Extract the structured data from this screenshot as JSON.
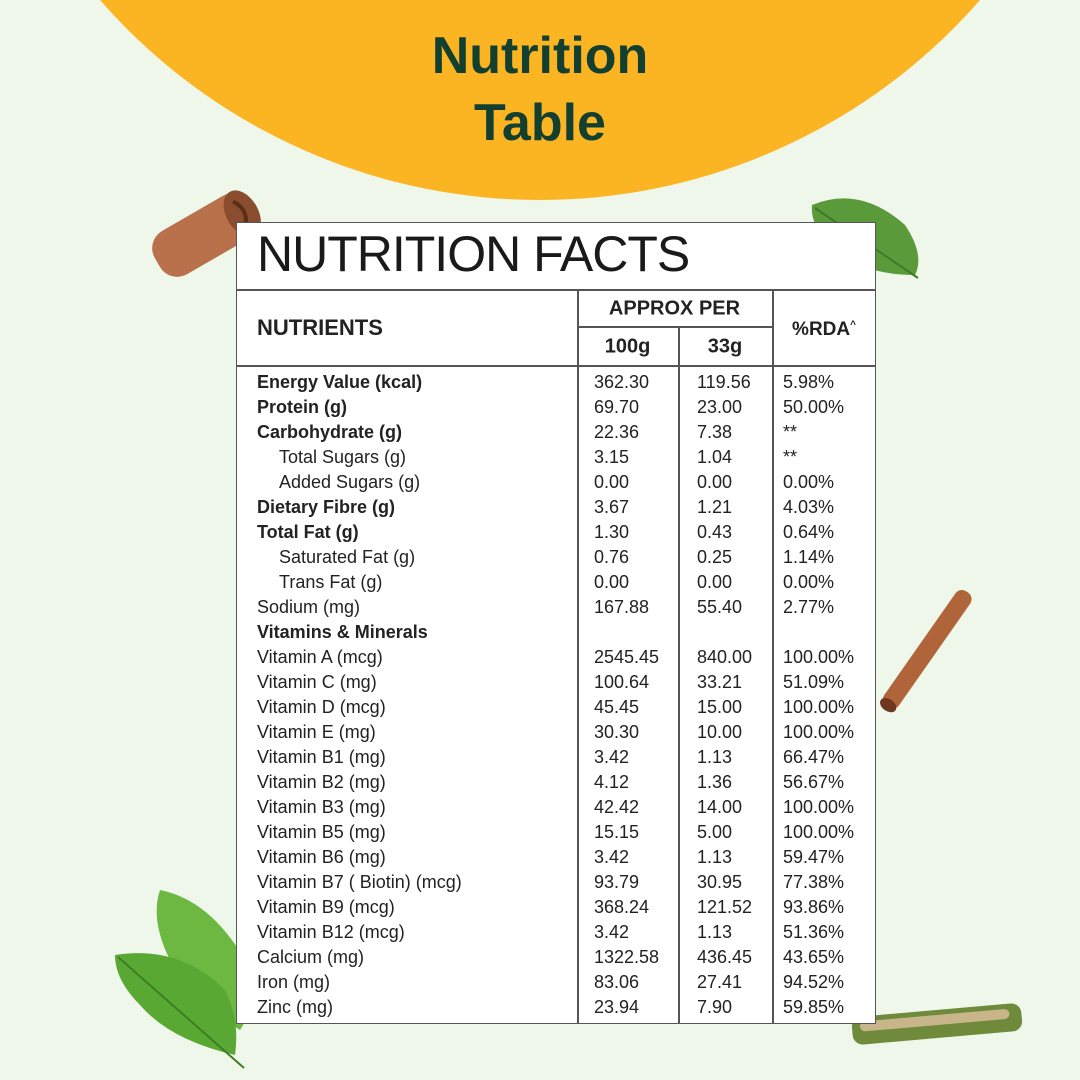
{
  "header": {
    "title_lines": [
      "Nutrition",
      "Table"
    ]
  },
  "table": {
    "title": "NUTRITION FACTS",
    "columns": {
      "nutrients": "NUTRIENTS",
      "approx_per": "APPROX PER",
      "per_100g": "100g",
      "per_33g": "33g",
      "rda": "%RDA",
      "rda_mark": "^"
    },
    "rows": [
      {
        "style": "bold",
        "cells": [
          "Energy Value (kcal)",
          "362.30",
          "119.56",
          "5.98%"
        ]
      },
      {
        "style": "bold",
        "cells": [
          "Protein (g)",
          "69.70",
          "23.00",
          "50.00%"
        ]
      },
      {
        "style": "bold",
        "cells": [
          "Carbohydrate (g)",
          "22.36",
          "7.38",
          "**"
        ]
      },
      {
        "style": "indent",
        "cells": [
          "Total Sugars (g)",
          "3.15",
          "1.04",
          "**"
        ]
      },
      {
        "style": "indent",
        "cells": [
          "Added Sugars (g)",
          "0.00",
          "0.00",
          "0.00%"
        ]
      },
      {
        "style": "bold",
        "cells": [
          "Dietary Fibre (g)",
          "3.67",
          "1.21",
          "4.03%"
        ]
      },
      {
        "style": "bold",
        "cells": [
          "Total Fat (g)",
          "1.30",
          "0.43",
          "0.64%"
        ]
      },
      {
        "style": "indent",
        "cells": [
          "Saturated Fat (g)",
          "0.76",
          "0.25",
          "1.14%"
        ]
      },
      {
        "style": "indent",
        "cells": [
          "Trans Fat (g)",
          "0.00",
          "0.00",
          "0.00%"
        ]
      },
      {
        "style": "normal",
        "cells": [
          "Sodium (mg)",
          "167.88",
          "55.40",
          "2.77%"
        ]
      },
      {
        "style": "bold",
        "cells": [
          "Vitamins & Minerals"
        ]
      },
      {
        "style": "normal",
        "cells": [
          "Vitamin A (mcg)",
          "2545.45",
          "840.00",
          "100.00%"
        ]
      },
      {
        "style": "normal",
        "cells": [
          "Vitamin C (mg)",
          "100.64",
          "33.21",
          "51.09%"
        ]
      },
      {
        "style": "normal",
        "cells": [
          "Vitamin D (mcg)",
          "45.45",
          "15.00",
          "100.00%"
        ]
      },
      {
        "style": "normal",
        "cells": [
          "Vitamin E (mg)",
          "30.30",
          "10.00",
          "100.00%"
        ]
      },
      {
        "style": "normal",
        "cells": [
          "Vitamin B1 (mg)",
          "3.42",
          "1.13",
          "66.47%"
        ]
      },
      {
        "style": "normal",
        "cells": [
          "Vitamin B2 (mg)",
          "4.12",
          "1.36",
          "56.67%"
        ]
      },
      {
        "style": "normal",
        "cells": [
          "Vitamin B3 (mg)",
          "42.42",
          "14.00",
          "100.00%"
        ]
      },
      {
        "style": "normal",
        "cells": [
          "Vitamin B5 (mg)",
          "15.15",
          "5.00",
          "100.00%"
        ]
      },
      {
        "style": "normal",
        "cells": [
          "Vitamin B6 (mg)",
          "3.42",
          "1.13",
          "59.47%"
        ]
      },
      {
        "style": "normal",
        "cells": [
          "Vitamin B7 ( Biotin) (mcg)",
          "93.79",
          "30.95",
          "77.38%"
        ]
      },
      {
        "style": "normal",
        "cells": [
          "Vitamin B9 (mcg)",
          "368.24",
          "121.52",
          "93.86%"
        ]
      },
      {
        "style": "normal",
        "cells": [
          "Vitamin B12 (mcg)",
          "3.42",
          "1.13",
          "51.36%"
        ]
      },
      {
        "style": "normal",
        "cells": [
          "Calcium (mg)",
          "1322.58",
          "436.45",
          "43.65%"
        ]
      },
      {
        "style": "normal",
        "cells": [
          "Iron (mg)",
          "83.06",
          "27.41",
          "94.52%"
        ]
      },
      {
        "style": "normal",
        "cells": [
          "Zinc (mg)",
          "23.94",
          "7.90",
          "59.85%"
        ]
      }
    ]
  }
}
